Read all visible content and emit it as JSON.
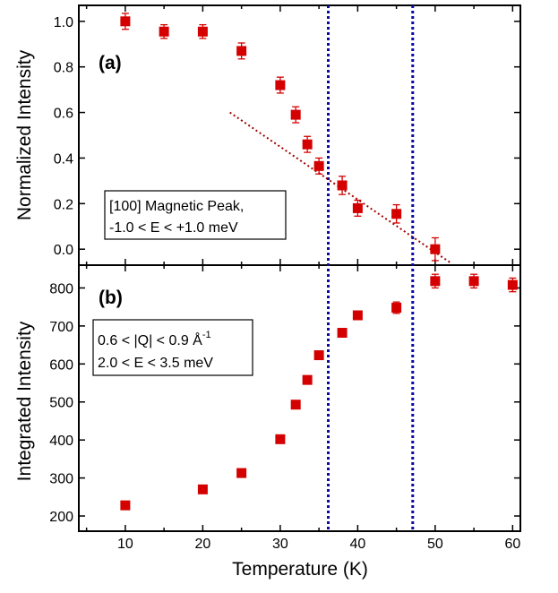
{
  "chart_data": [
    {
      "panel_label": "(a)",
      "type": "scatter",
      "ylabel": "Normalized Intensity",
      "xlim": [
        4,
        61
      ],
      "ylim": [
        -0.07,
        1.07
      ],
      "yticks": [
        "0.0",
        "0.2",
        "0.4",
        "0.6",
        "0.8",
        "1.0"
      ],
      "annotation_lines": [
        "[100] Magnetic Peak,",
        "-1.0 < E < +1.0 meV"
      ],
      "marker_color": "#d40000",
      "fit_line": {
        "style": "dotted",
        "color": "#a00000",
        "x": [
          23.5,
          52
        ],
        "y": [
          0.6,
          -0.06
        ]
      },
      "series": [
        {
          "x": [
            10,
            15,
            20,
            25,
            30,
            32,
            33.5,
            35,
            38,
            40,
            45,
            50
          ],
          "y": [
            1.0,
            0.955,
            0.955,
            0.87,
            0.72,
            0.59,
            0.46,
            0.365,
            0.28,
            0.18,
            0.155,
            0.0
          ],
          "yerr": [
            0.035,
            0.03,
            0.03,
            0.035,
            0.035,
            0.035,
            0.035,
            0.035,
            0.04,
            0.035,
            0.04,
            0.05
          ]
        }
      ]
    },
    {
      "panel_label": "(b)",
      "type": "scatter",
      "ylabel": "Integrated Intensity",
      "xlabel": "Temperature (K)",
      "xlim": [
        4,
        61
      ],
      "ylim": [
        160,
        860
      ],
      "xticks": [
        "10",
        "20",
        "30",
        "40",
        "50",
        "60"
      ],
      "yticks": [
        "200",
        "300",
        "400",
        "500",
        "600",
        "700",
        "800"
      ],
      "annotation_lines": [
        "0.6 < |Q| < 0.9 Å",
        "2.0 < E < 3.5 meV"
      ],
      "annotation_superscript": "-1",
      "marker_color": "#d40000",
      "series": [
        {
          "x": [
            10,
            20,
            25,
            30,
            32,
            33.5,
            35,
            38,
            40,
            45,
            50,
            55,
            60
          ],
          "y": [
            228,
            270,
            313,
            402,
            493,
            558,
            623,
            682,
            728,
            748,
            818,
            818,
            808
          ],
          "yerr": [
            0,
            0,
            0,
            0,
            0,
            0,
            0,
            0,
            0,
            15,
            18,
            18,
            18
          ]
        }
      ]
    }
  ],
  "vertical_lines": {
    "x": [
      36.2,
      47.1
    ],
    "color": "#0a0aa0",
    "style": "dotted"
  }
}
